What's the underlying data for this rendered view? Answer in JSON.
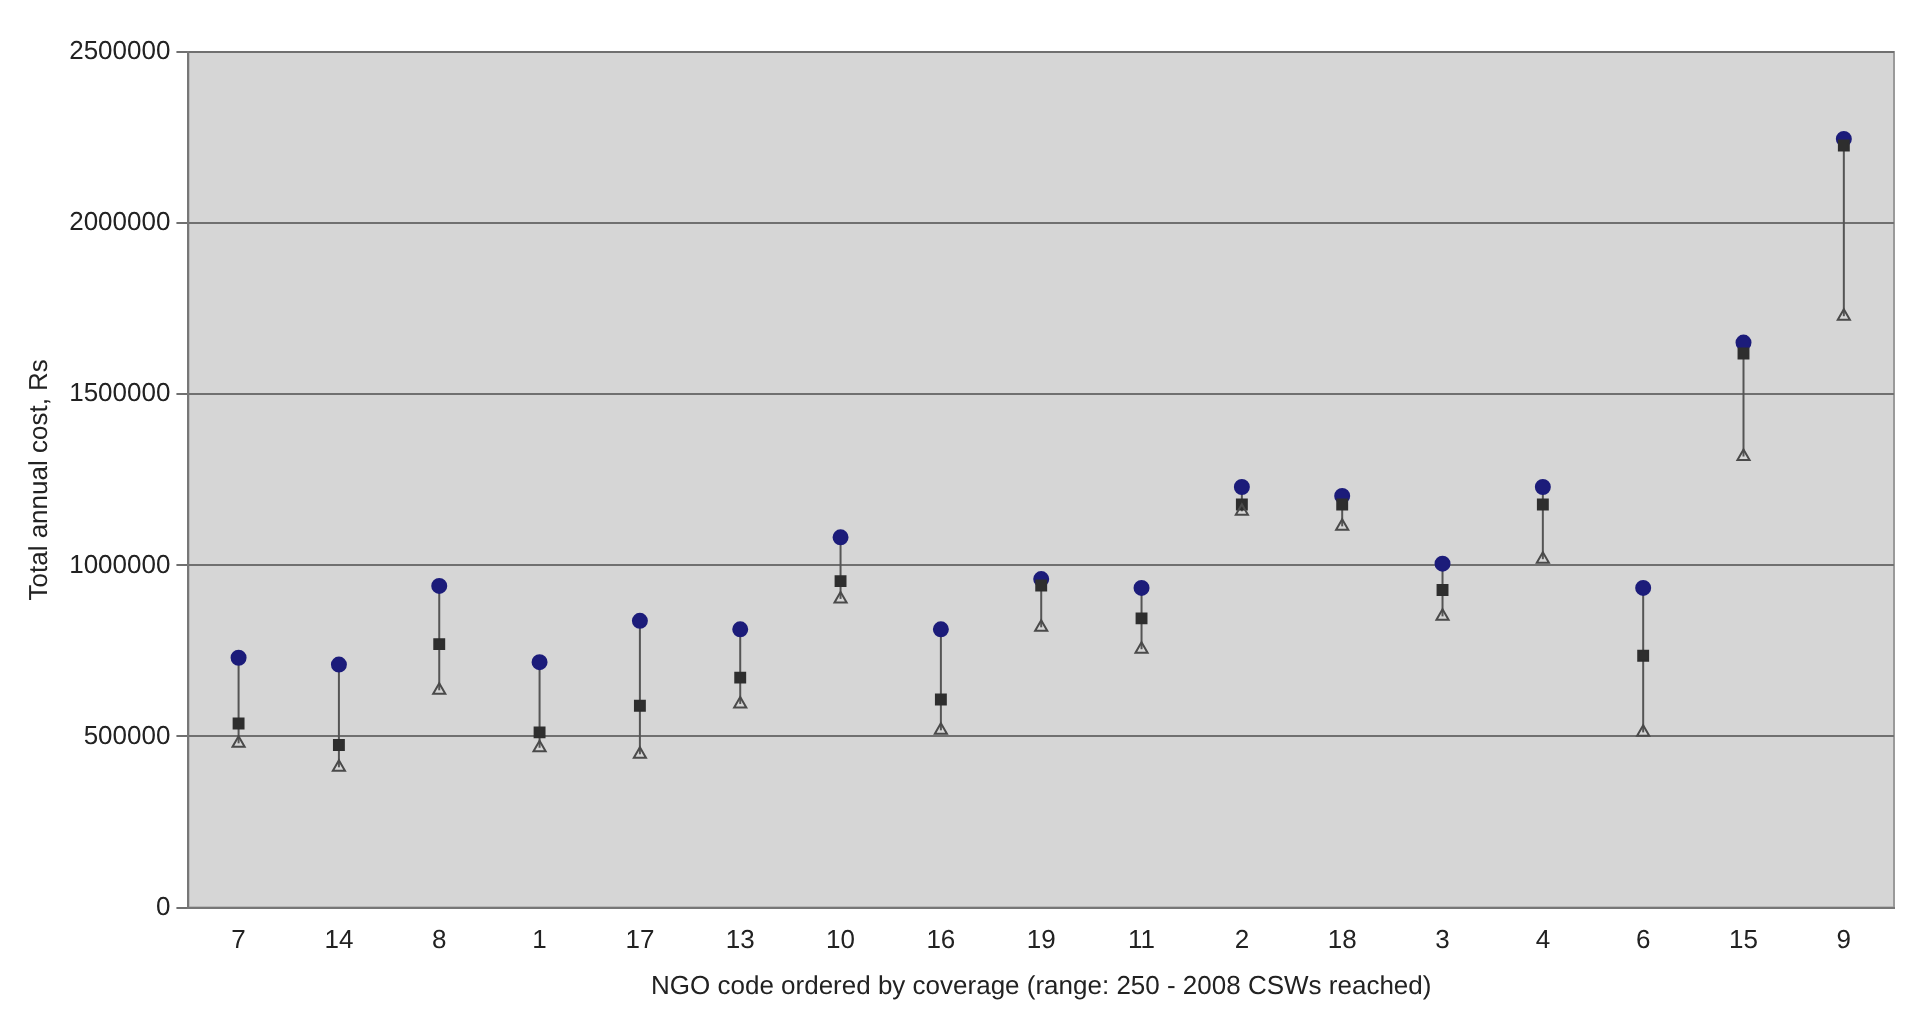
{
  "chart_data": {
    "type": "scatter",
    "xlabel": "NGO code ordered by coverage (range: 250 - 2008 CSWs reached)",
    "ylabel": "Total annual cost, Rs",
    "categories": [
      "7",
      "14",
      "8",
      "1",
      "17",
      "13",
      "10",
      "16",
      "19",
      "11",
      "2",
      "18",
      "3",
      "4",
      "6",
      "15",
      "9"
    ],
    "series": [
      {
        "color": "#1c1c7a",
        "marker": "circle",
        "values": [
          730000,
          710000,
          940000,
          717000,
          838000,
          813000,
          1082000,
          813000,
          960000,
          934000,
          1229000,
          1203000,
          1005000,
          1229000,
          934000,
          1651000,
          2246000
        ]
      },
      {
        "color": "#2e2e2e",
        "marker": "square",
        "values": [
          538000,
          475000,
          770000,
          512000,
          590000,
          672000,
          954000,
          608000,
          941000,
          845000,
          1178000,
          1178000,
          928000,
          1178000,
          736000,
          1619000,
          2227000
        ]
      },
      {
        "color": "#4a4a4a",
        "marker": "triangle",
        "values": [
          480000,
          410000,
          635000,
          467000,
          448000,
          595000,
          902000,
          518000,
          819000,
          755000,
          1158000,
          1114000,
          851000,
          1018000,
          512000,
          1318000,
          1728000
        ]
      }
    ],
    "ylim": [
      0,
      2500000
    ],
    "yticks": [
      0,
      500000,
      1000000,
      1500000,
      2000000,
      2500000
    ],
    "grid": "y",
    "legend": false
  }
}
